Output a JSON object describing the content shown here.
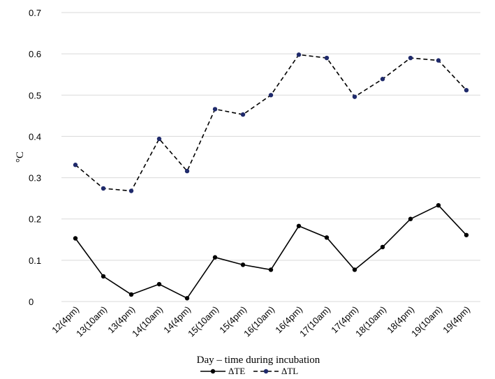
{
  "chart_data": {
    "type": "line",
    "categories": [
      "12(4pm)",
      "13(10am)",
      "13(4pm)",
      "14(10am)",
      "14(4pm)",
      "15(10am)",
      "15(4pm)",
      "16(10am)",
      "16(4pm)",
      "17(10am)",
      "17(4pm)",
      "18(10am)",
      "18(4pm)",
      "19(10am)",
      "19(4pm)"
    ],
    "series": [
      {
        "name": "ΔTE",
        "color": "#000000",
        "marker_color": "#000000",
        "line_style": "solid",
        "values": [
          0.153,
          0.061,
          0.017,
          0.042,
          0.008,
          0.107,
          0.089,
          0.077,
          0.183,
          0.155,
          0.077,
          0.132,
          0.2,
          0.233,
          0.161
        ]
      },
      {
        "name": "ΔTL",
        "color": "#000000",
        "marker_color": "#1f2a6b",
        "line_style": "dashed",
        "values": [
          0.331,
          0.274,
          0.268,
          0.394,
          0.316,
          0.466,
          0.453,
          0.5,
          0.598,
          0.59,
          0.496,
          0.539,
          0.59,
          0.584,
          0.512
        ]
      }
    ],
    "y_ticks": [
      "0",
      "0.1",
      "0.2",
      "0.3",
      "0.4",
      "0.5",
      "0.6",
      "0.7"
    ],
    "ylim": [
      0,
      0.7
    ],
    "xlabel": "Day – time during incubation",
    "ylabel": "°C",
    "grid": true,
    "legend": "bottom"
  }
}
